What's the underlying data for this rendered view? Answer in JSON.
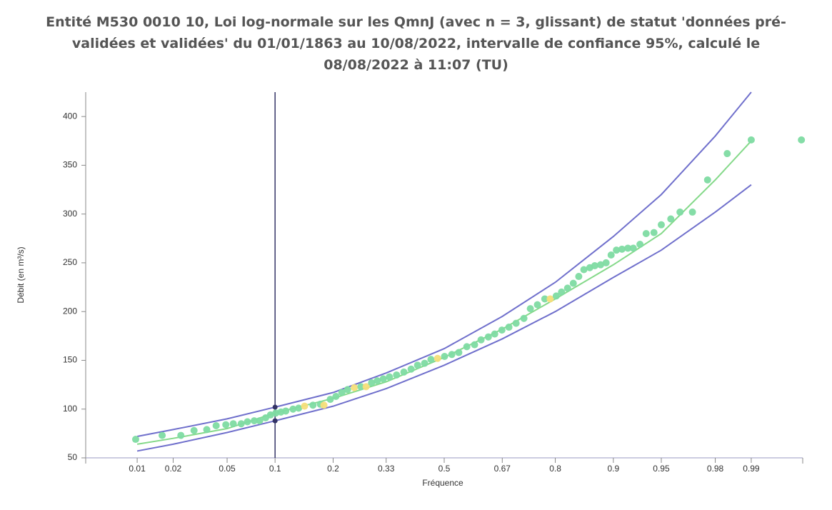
{
  "chart_data": {
    "type": "scatter",
    "title": "Entité M530 0010 10, Loi log-normale sur les QmnJ (avec n = 3, glissant) de statut 'données pré-validées et validées' du 01/01/1863 au 10/08/2022, intervalle de confiance 95%, calculé le 08/08/2022 à 11:07 (TU)",
    "x_label": "Fréquence",
    "y_label": "Débit (en m³/s)",
    "x_scale": "normal-probability",
    "xlim": [
      0.0033,
      0.9967
    ],
    "ylim": [
      50,
      425
    ],
    "xticks": [
      0.01,
      0.02,
      0.05,
      0.1,
      0.2,
      0.33,
      0.5,
      0.67,
      0.8,
      0.9,
      0.95,
      0.98,
      0.99
    ],
    "yticks": [
      50,
      100,
      150,
      200,
      250,
      300,
      350,
      400
    ],
    "points": {
      "x": [
        0.0097,
        0.0163,
        0.023,
        0.029,
        0.036,
        0.042,
        0.049,
        0.055,
        0.062,
        0.068,
        0.075,
        0.081,
        0.088,
        0.094,
        0.101,
        0.108,
        0.115,
        0.126,
        0.135,
        0.145,
        0.16,
        0.174,
        0.181,
        0.194,
        0.206,
        0.219,
        0.232,
        0.248,
        0.264,
        0.277,
        0.291,
        0.306,
        0.322,
        0.339,
        0.359,
        0.38,
        0.401,
        0.42,
        0.441,
        0.46,
        0.48,
        0.501,
        0.523,
        0.544,
        0.568,
        0.591,
        0.61,
        0.631,
        0.649,
        0.669,
        0.688,
        0.707,
        0.727,
        0.743,
        0.76,
        0.777,
        0.789,
        0.802,
        0.813,
        0.825,
        0.836,
        0.846,
        0.855,
        0.865,
        0.873,
        0.882,
        0.89,
        0.897,
        0.904,
        0.911,
        0.918,
        0.924,
        0.931,
        0.937,
        0.944,
        0.95,
        0.957,
        0.963,
        0.97,
        0.977,
        0.984,
        0.99,
        0.9966
      ],
      "y": [
        69,
        73,
        73,
        78,
        79,
        83,
        84,
        85,
        85,
        87,
        88,
        88,
        91,
        94,
        96,
        97,
        98,
        100,
        101,
        103,
        104,
        105,
        104,
        110,
        113,
        117,
        120,
        122,
        123,
        123,
        127,
        129,
        131,
        133,
        135,
        138,
        141,
        145,
        147,
        151,
        152,
        154,
        156,
        158,
        164,
        166,
        171,
        174,
        177,
        181,
        184,
        188,
        193,
        203,
        207,
        213,
        213,
        216,
        220,
        224,
        229,
        236,
        243,
        245,
        247,
        248,
        250,
        258,
        263,
        264,
        265,
        265,
        269,
        280,
        281,
        289,
        295,
        302,
        302,
        335,
        362,
        376,
        376
      ],
      "colors": [
        "#7edba2",
        "#7edba2",
        "#7edba2",
        "#7edba2",
        "#7edba2",
        "#7edba2",
        "#7edba2",
        "#7edba2",
        "#7edba2",
        "#7edba2",
        "#7edba2",
        "#7edba2",
        "#7edba2",
        "#7edba2",
        "#7edba2",
        "#7edba2",
        "#7edba2",
        "#7edba2",
        "#7edba2",
        "#f6de7a",
        "#7edba2",
        "#7edba2",
        "#f6de7a",
        "#7edba2",
        "#7edba2",
        "#7edba2",
        "#7edba2",
        "#f6de7a",
        "#7edba2",
        "#f6de7a",
        "#7edba2",
        "#7edba2",
        "#7edba2",
        "#7edba2",
        "#7edba2",
        "#7edba2",
        "#7edba2",
        "#7edba2",
        "#7edba2",
        "#7edba2",
        "#f6de7a",
        "#7edba2",
        "#7edba2",
        "#7edba2",
        "#7edba2",
        "#7edba2",
        "#7edba2",
        "#7edba2",
        "#7edba2",
        "#7edba2",
        "#7edba2",
        "#7edba2",
        "#7edba2",
        "#7edba2",
        "#7edba2",
        "#7edba2",
        "#f6de7a",
        "#7edba2",
        "#7edba2",
        "#7edba2",
        "#7edba2",
        "#7edba2",
        "#7edba2",
        "#7edba2",
        "#7edba2",
        "#7edba2",
        "#7edba2",
        "#7edba2",
        "#7edba2",
        "#7edba2",
        "#7edba2",
        "#7edba2",
        "#7edba2",
        "#7edba2",
        "#7edba2",
        "#7edba2",
        "#7edba2",
        "#7edba2",
        "#7edba2",
        "#7edba2",
        "#7edba2",
        "#7edba2",
        "#7edba2"
      ]
    },
    "curve_x": [
      0.01,
      0.02,
      0.05,
      0.1,
      0.2,
      0.33,
      0.5,
      0.67,
      0.8,
      0.9,
      0.95,
      0.98,
      0.99
    ],
    "curves": [
      {
        "color": "#7070cc",
        "values": [
          72,
          79,
          90,
          102,
          117,
          137,
          162,
          195,
          230,
          277,
          320,
          380,
          425
        ]
      },
      {
        "color": "#85d98a",
        "values": [
          64,
          70,
          80,
          96,
          111,
          128,
          153,
          182,
          213,
          248,
          280,
          335,
          375
        ]
      },
      {
        "color": "#7070cc",
        "values": [
          57,
          64,
          76,
          88,
          103,
          121,
          145,
          172,
          200,
          235,
          263,
          302,
          330
        ]
      }
    ],
    "crosshair": {
      "x": 0.1,
      "values": [
        102,
        88
      ],
      "color": "#333366"
    }
  }
}
